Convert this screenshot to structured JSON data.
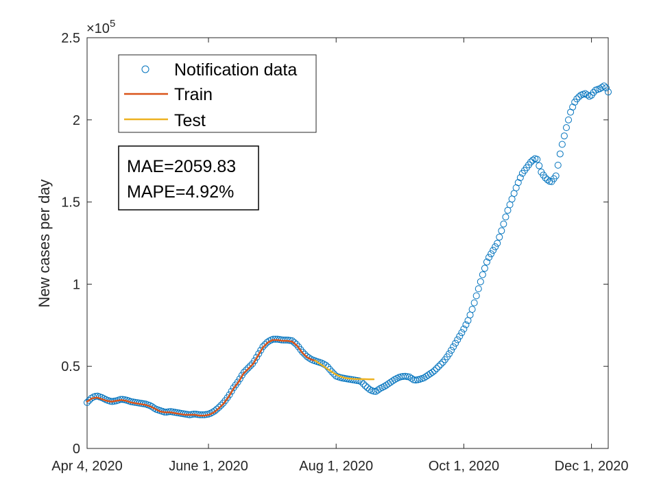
{
  "chart_data": {
    "type": "scatter",
    "title": "",
    "xlabel": "",
    "ylabel": "New cases per day",
    "y_exponent_label": "×10",
    "y_exponent_power": "5",
    "x_start_day": 0,
    "x_end_day": 249,
    "ylim": [
      0,
      2.5
    ],
    "x_tick_days": [
      0,
      58,
      119,
      180,
      241
    ],
    "x_tick_labels": [
      "Apr 4, 2020",
      "June 1, 2020",
      "Aug 1, 2020",
      "Oct 1, 2020",
      "Dec 1, 2020"
    ],
    "y_ticks": [
      0,
      0.5,
      1,
      1.5,
      2,
      2.5
    ],
    "y_tick_labels": [
      "0",
      "0.5",
      "1",
      "1.5",
      "2",
      "2.5"
    ],
    "legend": {
      "position": "top-left",
      "entries": [
        {
          "label": "Notification data",
          "marker": "circle",
          "color": "#0072BD"
        },
        {
          "label": "Train",
          "marker": "line",
          "color": "#D95319"
        },
        {
          "label": "Test",
          "marker": "line",
          "color": "#EDB120"
        }
      ]
    },
    "metrics": {
      "mae": "MAE=2059.83",
      "mape": "MAPE=4.92%"
    },
    "series": [
      {
        "name": "Notification data",
        "style": "circle",
        "color": "#0072BD",
        "anchors": [
          [
            0,
            0.28
          ],
          [
            3,
            0.31
          ],
          [
            6,
            0.32
          ],
          [
            9,
            0.31
          ],
          [
            12,
            0.295
          ],
          [
            15,
            0.285
          ],
          [
            18,
            0.29
          ],
          [
            21,
            0.3
          ],
          [
            24,
            0.295
          ],
          [
            27,
            0.285
          ],
          [
            30,
            0.28
          ],
          [
            33,
            0.275
          ],
          [
            36,
            0.27
          ],
          [
            39,
            0.26
          ],
          [
            42,
            0.24
          ],
          [
            45,
            0.23
          ],
          [
            48,
            0.22
          ],
          [
            51,
            0.225
          ],
          [
            54,
            0.22
          ],
          [
            57,
            0.215
          ],
          [
            60,
            0.21
          ],
          [
            63,
            0.205
          ],
          [
            66,
            0.21
          ],
          [
            69,
            0.205
          ],
          [
            72,
            0.205
          ],
          [
            75,
            0.21
          ],
          [
            78,
            0.225
          ],
          [
            81,
            0.25
          ],
          [
            84,
            0.28
          ],
          [
            87,
            0.32
          ],
          [
            90,
            0.37
          ],
          [
            93,
            0.41
          ],
          [
            96,
            0.46
          ],
          [
            99,
            0.49
          ],
          [
            102,
            0.52
          ],
          [
            105,
            0.57
          ],
          [
            108,
            0.62
          ],
          [
            111,
            0.65
          ],
          [
            114,
            0.665
          ],
          [
            117,
            0.665
          ],
          [
            120,
            0.66
          ],
          [
            123,
            0.66
          ],
          [
            126,
            0.655
          ],
          [
            129,
            0.63
          ],
          [
            132,
            0.59
          ],
          [
            135,
            0.56
          ],
          [
            138,
            0.54
          ],
          [
            141,
            0.53
          ],
          [
            144,
            0.52
          ],
          [
            147,
            0.505
          ],
          [
            150,
            0.47
          ],
          [
            153,
            0.44
          ],
          [
            156,
            0.43
          ],
          [
            159,
            0.425
          ],
          [
            162,
            0.42
          ],
          [
            165,
            0.415
          ],
          [
            168,
            0.41
          ],
          [
            171,
            0.38
          ],
          [
            174,
            0.355
          ],
          [
            177,
            0.345
          ],
          [
            180,
            0.365
          ],
          [
            183,
            0.38
          ],
          [
            186,
            0.4
          ],
          [
            189,
            0.42
          ],
          [
            192,
            0.435
          ],
          [
            195,
            0.44
          ],
          [
            198,
            0.435
          ],
          [
            201,
            0.415
          ],
          [
            204,
            0.42
          ],
          [
            207,
            0.43
          ],
          [
            210,
            0.45
          ],
          [
            213,
            0.47
          ],
          [
            216,
            0.5
          ],
          [
            219,
            0.53
          ],
          [
            222,
            0.57
          ],
          [
            225,
            0.62
          ],
          [
            228,
            0.67
          ],
          [
            231,
            0.72
          ],
          [
            234,
            0.78
          ],
          [
            237,
            0.86
          ],
          [
            240,
            0.96
          ],
          [
            243,
            1.06
          ],
          [
            246,
            1.15
          ],
          [
            249,
            1.2
          ],
          [
            252,
            1.25
          ],
          [
            255,
            1.34
          ],
          [
            258,
            1.44
          ],
          [
            261,
            1.52
          ],
          [
            264,
            1.6
          ],
          [
            267,
            1.67
          ],
          [
            270,
            1.71
          ],
          [
            273,
            1.75
          ],
          [
            276,
            1.77
          ],
          [
            279,
            1.68
          ],
          [
            282,
            1.64
          ],
          [
            285,
            1.62
          ],
          [
            288,
            1.66
          ],
          [
            291,
            1.82
          ],
          [
            294,
            1.94
          ],
          [
            297,
            2.05
          ],
          [
            300,
            2.12
          ],
          [
            303,
            2.15
          ],
          [
            306,
            2.16
          ],
          [
            309,
            2.14
          ],
          [
            312,
            2.18
          ],
          [
            315,
            2.19
          ],
          [
            318,
            2.21
          ],
          [
            320,
            2.17
          ]
        ],
        "x_scale": 0.778,
        "point_count": 250
      },
      {
        "name": "Train",
        "style": "line",
        "color": "#D95319",
        "x_range_days": [
          0,
          140
        ],
        "values": [
          [
            0,
            0.285
          ],
          [
            3,
            0.305
          ],
          [
            6,
            0.31
          ],
          [
            9,
            0.3
          ],
          [
            12,
            0.29
          ],
          [
            15,
            0.285
          ],
          [
            18,
            0.29
          ],
          [
            21,
            0.295
          ],
          [
            24,
            0.29
          ],
          [
            27,
            0.28
          ],
          [
            30,
            0.275
          ],
          [
            33,
            0.27
          ],
          [
            36,
            0.265
          ],
          [
            39,
            0.255
          ],
          [
            42,
            0.24
          ],
          [
            45,
            0.225
          ],
          [
            48,
            0.22
          ],
          [
            51,
            0.22
          ],
          [
            54,
            0.215
          ],
          [
            57,
            0.21
          ],
          [
            60,
            0.205
          ],
          [
            63,
            0.205
          ],
          [
            66,
            0.205
          ],
          [
            69,
            0.2
          ],
          [
            72,
            0.2
          ],
          [
            75,
            0.205
          ],
          [
            78,
            0.22
          ],
          [
            81,
            0.245
          ],
          [
            84,
            0.275
          ],
          [
            87,
            0.315
          ],
          [
            90,
            0.365
          ],
          [
            93,
            0.405
          ],
          [
            96,
            0.455
          ],
          [
            99,
            0.485
          ],
          [
            102,
            0.515
          ],
          [
            105,
            0.565
          ],
          [
            108,
            0.615
          ],
          [
            111,
            0.645
          ],
          [
            114,
            0.66
          ],
          [
            117,
            0.66
          ],
          [
            120,
            0.655
          ],
          [
            123,
            0.655
          ],
          [
            126,
            0.65
          ],
          [
            129,
            0.625
          ],
          [
            132,
            0.585
          ],
          [
            135,
            0.555
          ],
          [
            138,
            0.54
          ],
          [
            140,
            0.535
          ]
        ]
      },
      {
        "name": "Test",
        "style": "line",
        "color": "#EDB120",
        "values": [
          [
            140,
            0.535
          ],
          [
            143,
            0.515
          ],
          [
            146,
            0.495
          ],
          [
            149,
            0.475
          ],
          [
            152,
            0.455
          ],
          [
            155,
            0.44
          ],
          [
            158,
            0.43
          ],
          [
            161,
            0.425
          ],
          [
            164,
            0.423
          ],
          [
            167,
            0.422
          ],
          [
            170,
            0.422
          ],
          [
            173,
            0.421
          ],
          [
            176,
            0.421
          ]
        ]
      }
    ]
  }
}
